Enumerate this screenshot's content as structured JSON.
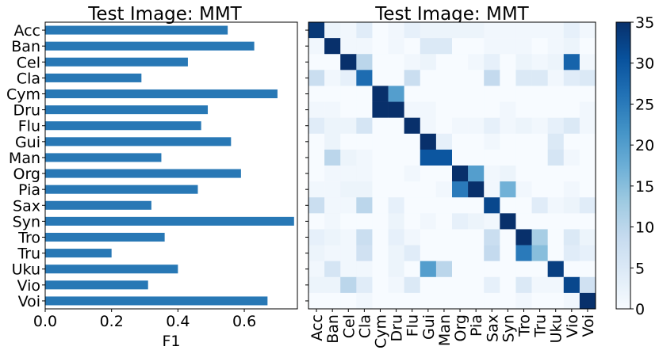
{
  "chart_data": [
    {
      "type": "bar",
      "orientation": "horizontal",
      "title": "Test Image: MMT",
      "xlabel": "F1",
      "xlim": [
        0,
        0.76
      ],
      "xticks": [
        "0.0",
        "0.2",
        "0.4",
        "0.6"
      ],
      "categories": [
        "Acc",
        "Ban",
        "Cel",
        "Cla",
        "Cym",
        "Dru",
        "Flu",
        "Gui",
        "Man",
        "Org",
        "Pia",
        "Sax",
        "Syn",
        "Tro",
        "Tru",
        "Uku",
        "Vio",
        "Voi"
      ],
      "values": [
        0.55,
        0.63,
        0.43,
        0.29,
        0.7,
        0.49,
        0.47,
        0.56,
        0.35,
        0.59,
        0.46,
        0.32,
        0.75,
        0.36,
        0.2,
        0.4,
        0.31,
        0.67
      ],
      "color": "#2878b5",
      "grid": false
    },
    {
      "type": "heatmap",
      "title": "Test Image: MMT",
      "x_categories": [
        "Acc",
        "Ban",
        "Cel",
        "Cla",
        "Cym",
        "Dru",
        "Flu",
        "Gui",
        "Man",
        "Org",
        "Pia",
        "Sax",
        "Syn",
        "Tro",
        "Tru",
        "Uku",
        "Vio",
        "Voi"
      ],
      "y_categories": [
        "Acc",
        "Ban",
        "Cel",
        "Cla",
        "Cym",
        "Dru",
        "Flu",
        "Gui",
        "Man",
        "Org",
        "Pia",
        "Sax",
        "Syn",
        "Tro",
        "Tru",
        "Uku",
        "Vio",
        "Voi"
      ],
      "colormap": "Blues",
      "vmin": 0,
      "vmax": 35,
      "colorbar_ticks": [
        "0",
        "5",
        "10",
        "15",
        "20",
        "25",
        "30",
        "35"
      ],
      "values": [
        [
          34,
          2,
          1,
          4,
          0,
          1,
          3,
          2,
          2,
          2,
          2,
          1,
          1,
          1,
          1,
          1,
          3,
          1
        ],
        [
          1,
          35,
          1,
          1,
          0,
          1,
          0,
          5,
          5,
          0,
          0,
          1,
          1,
          1,
          0,
          1,
          2,
          0
        ],
        [
          0,
          0,
          35,
          10,
          0,
          0,
          1,
          2,
          0,
          0,
          1,
          3,
          0,
          2,
          1,
          2,
          28,
          1
        ],
        [
          8,
          1,
          3,
          27,
          0,
          0,
          8,
          0,
          0,
          0,
          0,
          9,
          0,
          5,
          5,
          1,
          4,
          5
        ],
        [
          0,
          0,
          0,
          0,
          35,
          20,
          0,
          0,
          0,
          0,
          0,
          0,
          0,
          0,
          0,
          0,
          0,
          0
        ],
        [
          1,
          1,
          0,
          0,
          35,
          35,
          1,
          1,
          0,
          0,
          0,
          0,
          1,
          0,
          0,
          0,
          0,
          1
        ],
        [
          4,
          2,
          2,
          6,
          0,
          0,
          35,
          1,
          0,
          1,
          1,
          3,
          1,
          2,
          1,
          3,
          5,
          1
        ],
        [
          0,
          2,
          0,
          0,
          0,
          0,
          0,
          35,
          3,
          0,
          0,
          1,
          0,
          0,
          0,
          5,
          0,
          0
        ],
        [
          0,
          10,
          2,
          1,
          0,
          0,
          0,
          30,
          30,
          0,
          0,
          0,
          0,
          0,
          0,
          6,
          1,
          0
        ],
        [
          0,
          1,
          1,
          1,
          0,
          0,
          1,
          0,
          0,
          35,
          20,
          1,
          2,
          0,
          0,
          0,
          0,
          0
        ],
        [
          1,
          1,
          2,
          2,
          0,
          0,
          0,
          0,
          1,
          25,
          35,
          1,
          17,
          1,
          0,
          0,
          1,
          0
        ],
        [
          8,
          1,
          1,
          10,
          0,
          3,
          0,
          0,
          0,
          0,
          0,
          32,
          0,
          0,
          4,
          1,
          2,
          4
        ],
        [
          0,
          1,
          0,
          0,
          0,
          2,
          0,
          1,
          0,
          3,
          2,
          1,
          35,
          0,
          0,
          0,
          0,
          0
        ],
        [
          3,
          2,
          1,
          8,
          0,
          3,
          1,
          0,
          0,
          0,
          0,
          8,
          0,
          35,
          12,
          0,
          5,
          2
        ],
        [
          2,
          1,
          1,
          7,
          0,
          2,
          4,
          0,
          0,
          0,
          0,
          9,
          0,
          25,
          15,
          0,
          4,
          3
        ],
        [
          1,
          6,
          1,
          1,
          0,
          2,
          0,
          20,
          10,
          0,
          0,
          0,
          0,
          0,
          0,
          33,
          0,
          0
        ],
        [
          2,
          2,
          10,
          4,
          0,
          1,
          5,
          0,
          0,
          0,
          0,
          3,
          0,
          5,
          1,
          1,
          32,
          7
        ],
        [
          0,
          0,
          0,
          1,
          0,
          0,
          0,
          0,
          0,
          0,
          0,
          0,
          0,
          1,
          0,
          0,
          1,
          35
        ]
      ]
    }
  ]
}
